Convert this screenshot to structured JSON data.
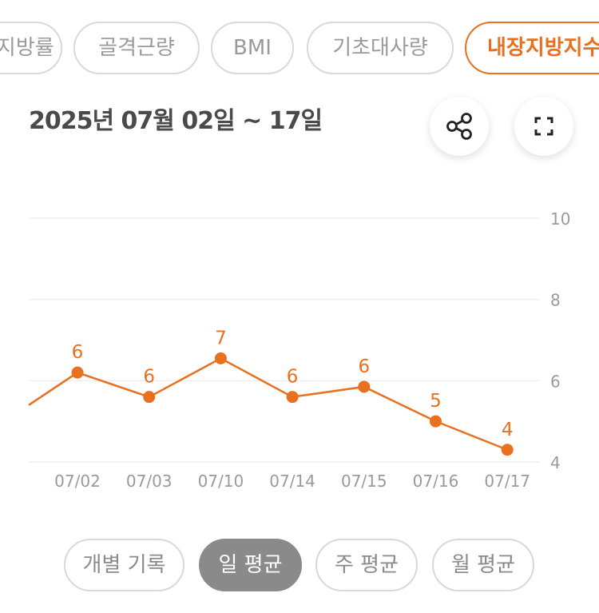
{
  "tabs": [
    {
      "label": "체지방률",
      "active": false
    },
    {
      "label": "골격근량",
      "active": false
    },
    {
      "label": "BMI",
      "active": false
    },
    {
      "label": "기초대사량",
      "active": false
    },
    {
      "label": "내장지방지수",
      "active": true
    }
  ],
  "date_range": "2025년 07월 02일 ~ 17일",
  "icons": {
    "share": "share-icon",
    "fullscreen": "fullscreen-icon"
  },
  "colors": {
    "accent": "#e8701f",
    "grid": "#eeeeee",
    "axis_text": "#9a9a9a"
  },
  "chart_data": {
    "type": "line",
    "x": [
      "07/02",
      "07/03",
      "07/10",
      "07/14",
      "07/15",
      "07/16",
      "07/17"
    ],
    "values": [
      6.2,
      5.6,
      6.55,
      5.6,
      5.85,
      5.0,
      4.3
    ],
    "data_labels": [
      "6",
      "6",
      "7",
      "6",
      "6",
      "5",
      "4"
    ],
    "ylim": [
      4,
      10
    ],
    "yticks": [
      "4",
      "6",
      "8",
      "10"
    ],
    "grid": true,
    "title": "",
    "xlabel": "",
    "ylabel": ""
  },
  "periods": [
    {
      "label": "개별 기록",
      "active": false
    },
    {
      "label": "일 평균",
      "active": true
    },
    {
      "label": "주 평균",
      "active": false
    },
    {
      "label": "월 평균",
      "active": false
    }
  ]
}
